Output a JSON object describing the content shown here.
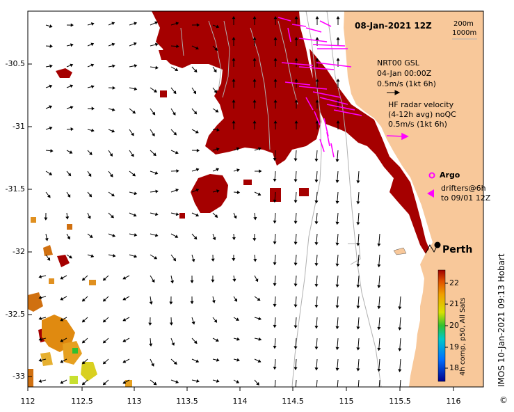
{
  "map": {
    "date": "08-Jan-2021 12Z",
    "depth_legend": [
      "200m",
      "1000m"
    ],
    "gsl_legend": [
      "NRT00 GSL",
      "04-Jan 00:00Z",
      "0.5m/s (1kt 6h)"
    ],
    "hf_legend": [
      "HF radar velocity",
      "(4-12h avg) noQC",
      "0.5m/s (1kt 6h)"
    ],
    "argo_label": "Argo",
    "drifter_label": [
      "drifters@6h",
      "to 09/01 12Z"
    ],
    "city": "Perth",
    "credit": "IMOS 10-Jan-2021 09:13 Hobart",
    "copyright": "©",
    "colorbar_title": "4h comp, p50, All Sats",
    "colorbar_ticks": [
      "22",
      "21",
      "20",
      "19",
      "18"
    ],
    "y_ticks": [
      "-30.5",
      "-31",
      "-31.5",
      "-32",
      "-32.5",
      "-33"
    ],
    "x_ticks": [
      "112",
      "112.5",
      "113",
      "113.5",
      "114",
      "114.5",
      "115",
      "115.5",
      "116"
    ],
    "colors": {
      "land": "#f8c89a",
      "warm": "#a50000",
      "hf_arrow": "#ff00ff",
      "contour": "#b0b0b0"
    }
  }
}
